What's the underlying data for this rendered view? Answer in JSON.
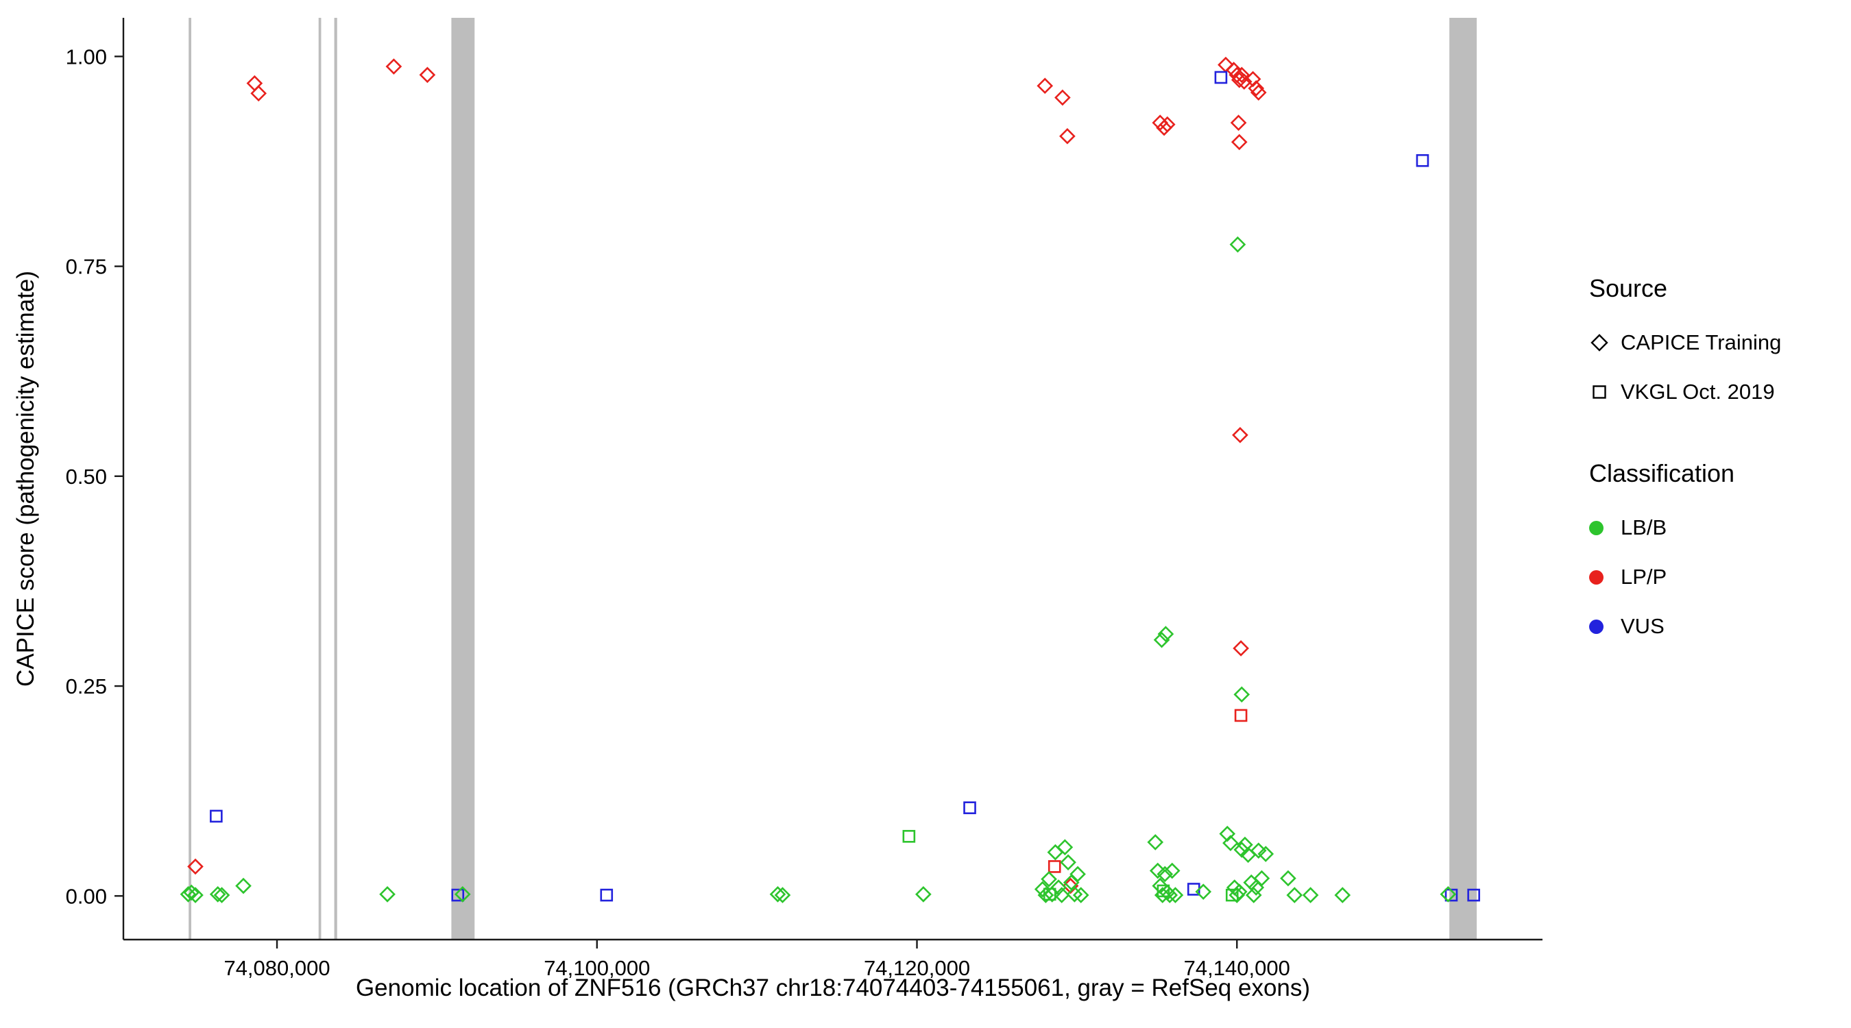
{
  "chart_data": {
    "type": "scatter",
    "title": "",
    "xlabel": "Genomic location of ZNF516 (GRCh37 chr18:74074403-74155061, gray = RefSeq exons)",
    "ylabel": "CAPICE score (pathogenicity estimate)",
    "xlim": [
      74070400,
      74159100
    ],
    "ylim": [
      -0.052,
      1.046
    ],
    "x_ticks": [
      74080000,
      74100000,
      74120000,
      74140000
    ],
    "x_tick_labels": [
      "74,080,000",
      "74,100,000",
      "74,120,000",
      "74,140,000"
    ],
    "y_ticks": [
      0,
      0.25,
      0.5,
      0.75,
      1
    ],
    "y_tick_labels": [
      "0.00",
      "0.25",
      "0.50",
      "0.75",
      "1.00"
    ],
    "grid": false,
    "exon_color": "#BDBDBD",
    "exons": [
      [
        74074480,
        74074640
      ],
      [
        74082600,
        74082760
      ],
      [
        74083580,
        74083760
      ],
      [
        74090900,
        74092350
      ],
      [
        74153280,
        74154990
      ]
    ],
    "classification_colors": {
      "LB/B": "#2DC42D",
      "LP/P": "#E8211D",
      "VUS": "#2222DD"
    },
    "shape_by_source": {
      "CAPICE Training": "diamond",
      "VKGL Oct. 2019": "square"
    },
    "point_fields": [
      "genomic_position",
      "capice_score",
      "classification",
      "shape"
    ],
    "points": [
      [
        74074900,
        0.035,
        "LP/P",
        "diamond"
      ],
      [
        74078600,
        0.968,
        "LP/P",
        "diamond"
      ],
      [
        74078850,
        0.956,
        "LP/P",
        "diamond"
      ],
      [
        74087300,
        0.988,
        "LP/P",
        "diamond"
      ],
      [
        74089400,
        0.978,
        "LP/P",
        "diamond"
      ],
      [
        74128000,
        0.965,
        "LP/P",
        "diamond"
      ],
      [
        74129100,
        0.951,
        "LP/P",
        "diamond"
      ],
      [
        74129400,
        0.905,
        "LP/P",
        "diamond"
      ],
      [
        74129600,
        0.012,
        "LP/P",
        "diamond"
      ],
      [
        74135200,
        0.921,
        "LP/P",
        "diamond"
      ],
      [
        74135450,
        0.915,
        "LP/P",
        "diamond"
      ],
      [
        74135650,
        0.919,
        "LP/P",
        "diamond"
      ],
      [
        74139300,
        0.99,
        "LP/P",
        "diamond"
      ],
      [
        74139800,
        0.984,
        "LP/P",
        "diamond"
      ],
      [
        74140000,
        0.978,
        "LP/P",
        "diamond"
      ],
      [
        74140150,
        0.972,
        "LP/P",
        "diamond"
      ],
      [
        74140300,
        0.978,
        "LP/P",
        "diamond"
      ],
      [
        74140450,
        0.97,
        "LP/P",
        "diamond"
      ],
      [
        74141000,
        0.973,
        "LP/P",
        "diamond"
      ],
      [
        74141200,
        0.962,
        "LP/P",
        "diamond"
      ],
      [
        74141350,
        0.957,
        "LP/P",
        "diamond"
      ],
      [
        74140100,
        0.921,
        "LP/P",
        "diamond"
      ],
      [
        74140150,
        0.898,
        "LP/P",
        "diamond"
      ],
      [
        74140200,
        0.549,
        "LP/P",
        "diamond"
      ],
      [
        74140250,
        0.295,
        "LP/P",
        "diamond"
      ],
      [
        74128600,
        0.035,
        "LP/P",
        "square"
      ],
      [
        74140250,
        0.215,
        "LP/P",
        "square"
      ],
      [
        74076200,
        0.095,
        "VUS",
        "square"
      ],
      [
        74091300,
        0.001,
        "VUS",
        "square"
      ],
      [
        74100600,
        0.001,
        "VUS",
        "square"
      ],
      [
        74123300,
        0.105,
        "VUS",
        "square"
      ],
      [
        74137300,
        0.008,
        "VUS",
        "square"
      ],
      [
        74139000,
        0.975,
        "VUS",
        "square"
      ],
      [
        74151600,
        0.876,
        "VUS",
        "square"
      ],
      [
        74153400,
        0.001,
        "VUS",
        "square"
      ],
      [
        74154800,
        0.001,
        "VUS",
        "square"
      ],
      [
        74119500,
        0.071,
        "LB/B",
        "square"
      ],
      [
        74128300,
        0.002,
        "LB/B",
        "square"
      ],
      [
        74135400,
        0.006,
        "LB/B",
        "square"
      ],
      [
        74139700,
        0.001,
        "LB/B",
        "square"
      ],
      [
        74074450,
        0.002,
        "LB/B",
        "diamond"
      ],
      [
        74074650,
        0.004,
        "LB/B",
        "diamond"
      ],
      [
        74074900,
        0.001,
        "LB/B",
        "diamond"
      ],
      [
        74076300,
        0.002,
        "LB/B",
        "diamond"
      ],
      [
        74076550,
        0.001,
        "LB/B",
        "diamond"
      ],
      [
        74077900,
        0.012,
        "LB/B",
        "diamond"
      ],
      [
        74086900,
        0.002,
        "LB/B",
        "diamond"
      ],
      [
        74091600,
        0.002,
        "LB/B",
        "diamond"
      ],
      [
        74111300,
        0.002,
        "LB/B",
        "diamond"
      ],
      [
        74111600,
        0.001,
        "LB/B",
        "diamond"
      ],
      [
        74120400,
        0.002,
        "LB/B",
        "diamond"
      ],
      [
        74127850,
        0.008,
        "LB/B",
        "diamond"
      ],
      [
        74128050,
        0.001,
        "LB/B",
        "diamond"
      ],
      [
        74128250,
        0.02,
        "LB/B",
        "diamond"
      ],
      [
        74128450,
        0.002,
        "LB/B",
        "diamond"
      ],
      [
        74128650,
        0.052,
        "LB/B",
        "diamond"
      ],
      [
        74128850,
        0.01,
        "LB/B",
        "diamond"
      ],
      [
        74129050,
        0.001,
        "LB/B",
        "diamond"
      ],
      [
        74129250,
        0.058,
        "LB/B",
        "diamond"
      ],
      [
        74129450,
        0.04,
        "LB/B",
        "diamond"
      ],
      [
        74129650,
        0.016,
        "LB/B",
        "diamond"
      ],
      [
        74129850,
        0.002,
        "LB/B",
        "diamond"
      ],
      [
        74130050,
        0.026,
        "LB/B",
        "diamond"
      ],
      [
        74130250,
        0.001,
        "LB/B",
        "diamond"
      ],
      [
        74134900,
        0.064,
        "LB/B",
        "diamond"
      ],
      [
        74135050,
        0.03,
        "LB/B",
        "diamond"
      ],
      [
        74135200,
        0.012,
        "LB/B",
        "diamond"
      ],
      [
        74135350,
        0.001,
        "LB/B",
        "diamond"
      ],
      [
        74135500,
        0.026,
        "LB/B",
        "diamond"
      ],
      [
        74135650,
        0.004,
        "LB/B",
        "diamond"
      ],
      [
        74135800,
        0.001,
        "LB/B",
        "diamond"
      ],
      [
        74135950,
        0.03,
        "LB/B",
        "diamond"
      ],
      [
        74136150,
        0.001,
        "LB/B",
        "diamond"
      ],
      [
        74135300,
        0.305,
        "LB/B",
        "diamond"
      ],
      [
        74135550,
        0.312,
        "LB/B",
        "diamond"
      ],
      [
        74137900,
        0.005,
        "LB/B",
        "diamond"
      ],
      [
        74139400,
        0.074,
        "LB/B",
        "diamond"
      ],
      [
        74139600,
        0.063,
        "LB/B",
        "diamond"
      ],
      [
        74139850,
        0.01,
        "LB/B",
        "diamond"
      ],
      [
        74140000,
        0.001,
        "LB/B",
        "diamond"
      ],
      [
        74140150,
        0.005,
        "LB/B",
        "diamond"
      ],
      [
        74140300,
        0.055,
        "LB/B",
        "diamond"
      ],
      [
        74140500,
        0.061,
        "LB/B",
        "diamond"
      ],
      [
        74140700,
        0.049,
        "LB/B",
        "diamond"
      ],
      [
        74140900,
        0.016,
        "LB/B",
        "diamond"
      ],
      [
        74141050,
        0.001,
        "LB/B",
        "diamond"
      ],
      [
        74141200,
        0.01,
        "LB/B",
        "diamond"
      ],
      [
        74141350,
        0.054,
        "LB/B",
        "diamond"
      ],
      [
        74141550,
        0.021,
        "LB/B",
        "diamond"
      ],
      [
        74141800,
        0.05,
        "LB/B",
        "diamond"
      ],
      [
        74140050,
        0.776,
        "LB/B",
        "diamond"
      ],
      [
        74140300,
        0.24,
        "LB/B",
        "diamond"
      ],
      [
        74143200,
        0.021,
        "LB/B",
        "diamond"
      ],
      [
        74143600,
        0.001,
        "LB/B",
        "diamond"
      ],
      [
        74144600,
        0.001,
        "LB/B",
        "diamond"
      ],
      [
        74146600,
        0.001,
        "LB/B",
        "diamond"
      ],
      [
        74153200,
        0.002,
        "LB/B",
        "diamond"
      ]
    ]
  },
  "legend": {
    "source_title": "Source",
    "source_items": [
      {
        "label": "CAPICE Training",
        "shape": "diamond"
      },
      {
        "label": "VKGL Oct. 2019",
        "shape": "square"
      }
    ],
    "classification_title": "Classification",
    "classification_items": [
      {
        "label": "LB/B",
        "color": "#2DC42D"
      },
      {
        "label": "LP/P",
        "color": "#E8211D"
      },
      {
        "label": "VUS",
        "color": "#2222DD"
      }
    ]
  }
}
